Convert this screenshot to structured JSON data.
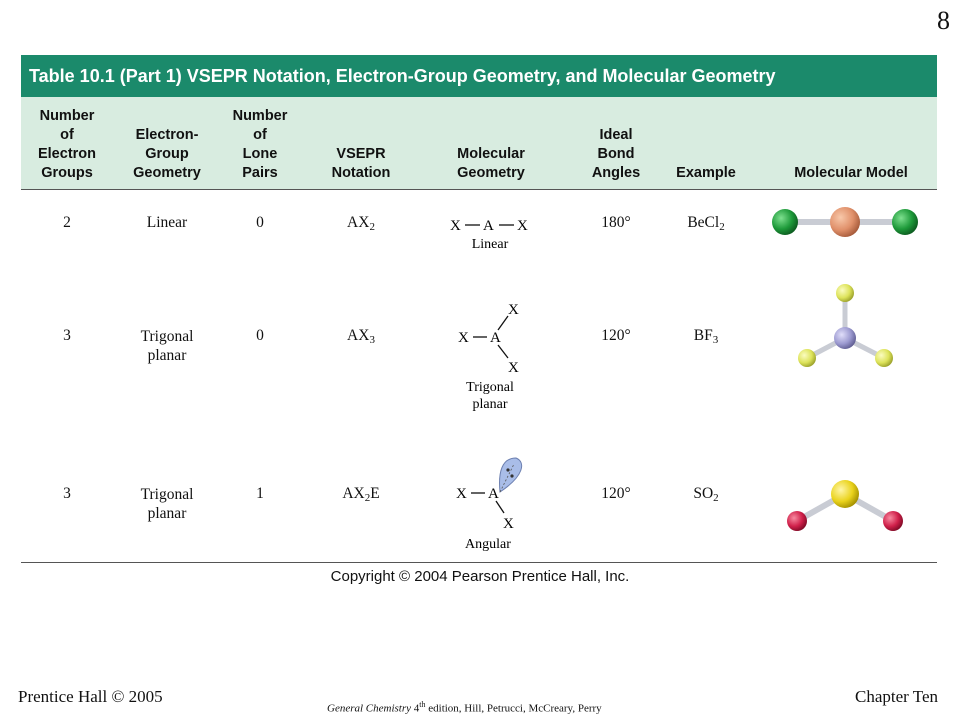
{
  "slide_number": "8",
  "table": {
    "title": "Table 10.1 (Part 1)  VSEPR Notation, Electron-Group Geometry, and Molecular Geometry",
    "headers": {
      "electron_groups": "Number\nof\nElectron\nGroups",
      "electron_geometry": "Electron-\nGroup\nGeometry",
      "lone_pairs": "Number\nof\nLone\nPairs",
      "vsepr": "VSEPR\nNotation",
      "molecular_geometry": "Molecular\nGeometry",
      "bond_angles": "Ideal\nBond\nAngles",
      "example": "Example",
      "model": "Molecular Model"
    },
    "rows": [
      {
        "electron_groups": "2",
        "electron_geometry": "Linear",
        "lone_pairs": "0",
        "vsepr_main": "AX",
        "vsepr_sub": "2",
        "vsepr_suffix": "",
        "diagram_labels": [
          "X",
          "A",
          "X"
        ],
        "diagram_caption": "Linear",
        "bond_angle": "180°",
        "example_main": "BeCl",
        "example_sub": "2"
      },
      {
        "electron_groups": "3",
        "electron_geometry": "Trigonal\nplanar",
        "lone_pairs": "0",
        "vsepr_main": "AX",
        "vsepr_sub": "3",
        "vsepr_suffix": "",
        "diagram_labels": [
          "X",
          "A",
          "X",
          "X"
        ],
        "diagram_caption": "Trigonal",
        "diagram_caption2": "planar",
        "bond_angle": "120°",
        "example_main": "BF",
        "example_sub": "3"
      },
      {
        "electron_groups": "3",
        "electron_geometry": "Trigonal\nplanar",
        "lone_pairs": "1",
        "vsepr_main": "AX",
        "vsepr_sub": "2",
        "vsepr_suffix": "E",
        "diagram_labels": [
          "X",
          "A",
          "X"
        ],
        "diagram_caption": "Angular",
        "bond_angle": "120°",
        "example_main": "SO",
        "example_sub": "2"
      }
    ],
    "copyright": "Copyright © 2004 Pearson Prentice Hall, Inc."
  },
  "footer": {
    "left": "Prentice Hall © 2005",
    "center_italic": "General Chemistry",
    "center_edition": "4",
    "center_edition_sup": "th",
    "center_rest": " edition, Hill, Petrucci, McCreary, Perry",
    "right": "Chapter Ten"
  },
  "colors": {
    "title_bar": "#1b8a6b",
    "header_band": "#d8ece0",
    "chlorine": "#1e9a3a",
    "beryllium": "#e0906a",
    "fluorine": "#dde35a",
    "boron": "#9c9ad0",
    "sulfur": "#ead31c",
    "oxygen": "#d0204a",
    "lone_pair": "#a9bde8"
  }
}
